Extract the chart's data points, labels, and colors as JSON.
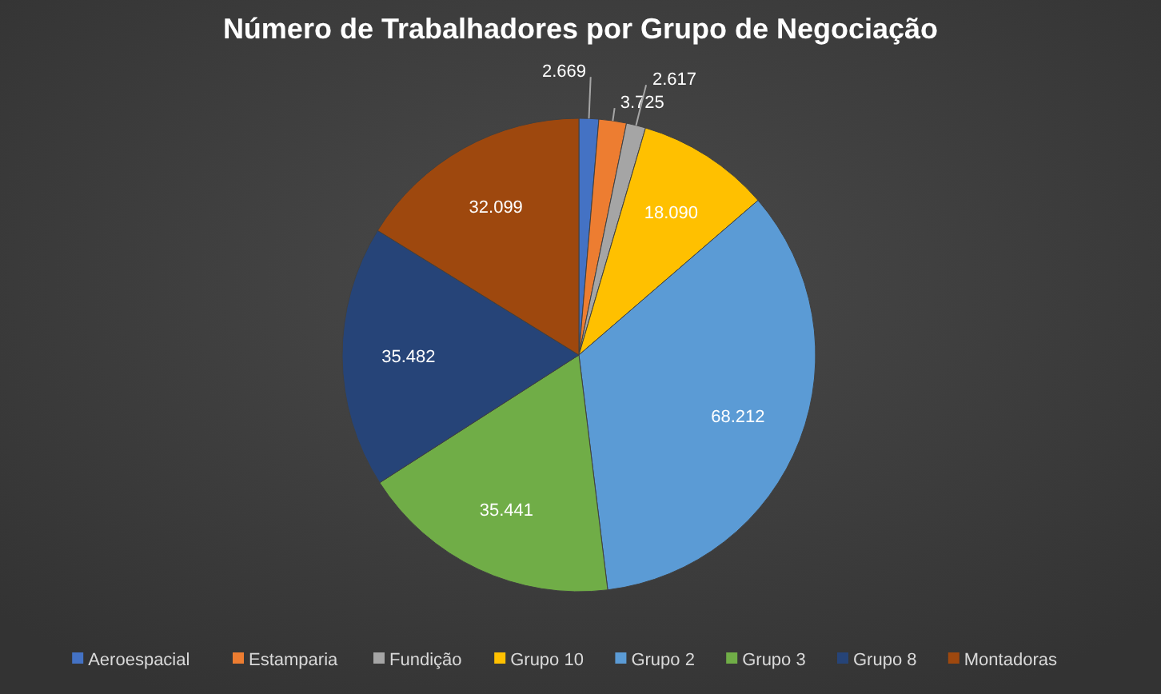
{
  "chart_data": {
    "type": "pie",
    "title": "Número de Trabalhadores por Grupo de Negociação",
    "categories": [
      "Aeroespacial",
      "Estamparia",
      "Fundição",
      "Grupo 10",
      "Grupo 2",
      "Grupo 3",
      "Grupo 8",
      "Montadoras"
    ],
    "values": [
      2669,
      3725,
      2617,
      18090,
      68212,
      35441,
      35482,
      32099
    ],
    "value_labels": [
      "2.669",
      "3.725",
      "2.617",
      "18.090",
      "68.212",
      "35.441",
      "35.482",
      "32.099"
    ],
    "colors": [
      "#4472c4",
      "#ed7d31",
      "#a5a5a5",
      "#ffc000",
      "#5b9bd5",
      "#70ad47",
      "#264478",
      "#9e480e"
    ],
    "legend": "bottom"
  }
}
